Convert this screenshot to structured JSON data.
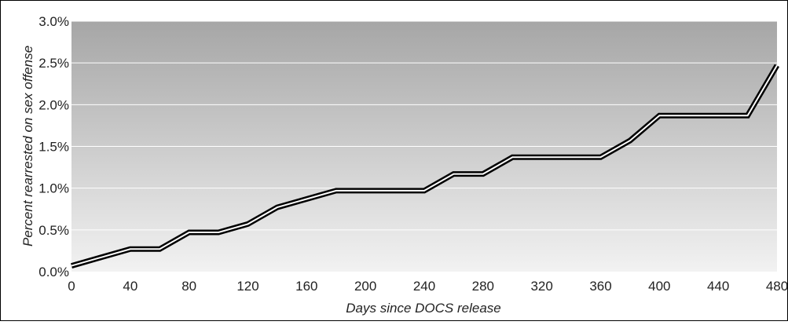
{
  "chart_data": {
    "type": "line",
    "title": "",
    "xlabel": "Days since DOCS release",
    "ylabel": "Percent rearrested on sex offense",
    "xlim": [
      0,
      480
    ],
    "ylim": [
      0,
      3.0
    ],
    "x_ticks": [
      0,
      40,
      80,
      120,
      160,
      200,
      240,
      280,
      320,
      360,
      400,
      440,
      480
    ],
    "x_tick_labels": [
      "0",
      "40",
      "80",
      "120",
      "160",
      "200",
      "240",
      "280",
      "320",
      "360",
      "400",
      "440",
      "480"
    ],
    "y_ticks": [
      0,
      0.5,
      1.0,
      1.5,
      2.0,
      2.5,
      3.0
    ],
    "y_tick_labels": [
      "0.0%",
      "0.5%",
      "1.0%",
      "1.5%",
      "2.0%",
      "2.5%",
      "3.0%"
    ],
    "grid": true,
    "legend": "none",
    "series": [
      {
        "x": [
          0,
          20,
          40,
          60,
          80,
          100,
          120,
          140,
          160,
          180,
          200,
          220,
          240,
          260,
          280,
          300,
          320,
          340,
          360,
          380,
          400,
          420,
          440,
          460,
          480
        ],
        "y": [
          0.07,
          0.17,
          0.27,
          0.27,
          0.47,
          0.47,
          0.57,
          0.77,
          0.87,
          0.97,
          0.97,
          0.97,
          0.97,
          1.17,
          1.17,
          1.37,
          1.37,
          1.37,
          1.37,
          1.57,
          1.87,
          1.87,
          1.87,
          1.87,
          2.47
        ]
      }
    ]
  },
  "colors": {
    "background_top": "#a6a6a6",
    "background_bottom": "#f2f2f2",
    "gridline": "#ffffff",
    "line_outer": "#000000",
    "line_inner": "#ffffff",
    "frame": "#000000"
  }
}
